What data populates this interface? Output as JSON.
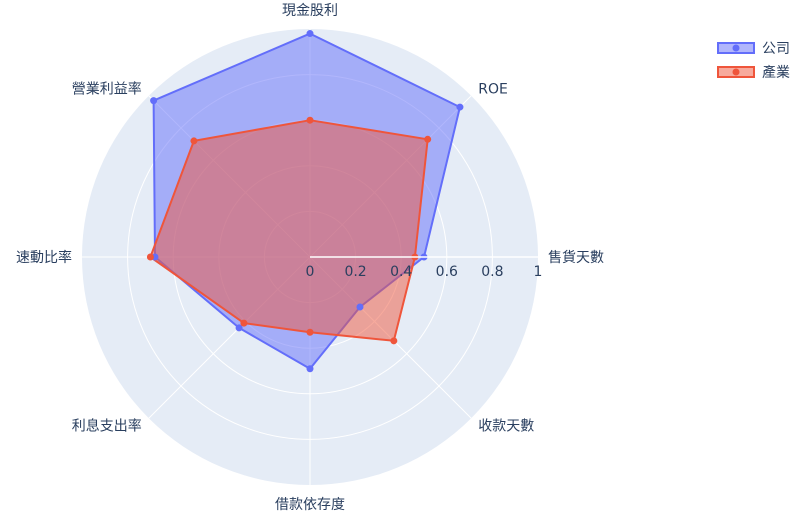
{
  "chart_data": {
    "type": "radar",
    "categories": [
      "售貨天數",
      "ROE",
      "現金股利",
      "營業利益率",
      "速動比率",
      "利息支出率",
      "借款依存度",
      "收款天數"
    ],
    "radial_ticks": [
      "0",
      "0.2",
      "0.4",
      "0.6",
      "0.8",
      "1"
    ],
    "radial_range": [
      0,
      1
    ],
    "legend_position": "top-right",
    "series": [
      {
        "name": "公司",
        "color": "#636efa",
        "fill": "rgba(99,110,250,0.5)",
        "values": [
          0.5,
          0.93,
          0.98,
          0.97,
          0.68,
          0.44,
          0.49,
          0.31
        ]
      },
      {
        "name": "產業",
        "color": "#ef553b",
        "fill": "rgba(239,85,59,0.5)",
        "values": [
          0.46,
          0.73,
          0.6,
          0.72,
          0.7,
          0.41,
          0.33,
          0.52
        ]
      }
    ]
  }
}
